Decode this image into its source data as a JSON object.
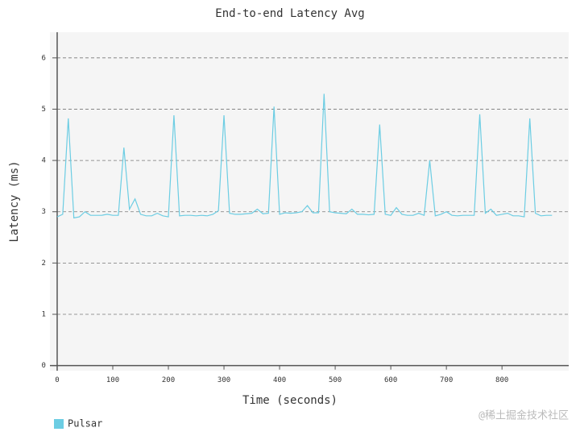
{
  "chart_data": {
    "type": "line",
    "title": "End-to-end Latency Avg",
    "x_label": "Time (seconds)",
    "y_label": "Latency (ms)",
    "x": [
      0,
      10,
      20,
      30,
      40,
      50,
      60,
      70,
      80,
      90,
      100,
      110,
      120,
      130,
      140,
      150,
      160,
      170,
      180,
      190,
      200,
      210,
      220,
      230,
      240,
      250,
      260,
      270,
      280,
      290,
      300,
      310,
      320,
      330,
      340,
      350,
      360,
      370,
      380,
      390,
      400,
      410,
      420,
      430,
      440,
      450,
      460,
      470,
      480,
      490,
      500,
      510,
      520,
      530,
      540,
      550,
      560,
      570,
      580,
      590,
      600,
      610,
      620,
      630,
      640,
      650,
      660,
      670,
      680,
      690,
      700,
      710,
      720,
      730,
      740,
      750,
      760,
      770,
      780,
      790,
      800,
      810,
      820,
      830,
      840,
      850,
      860,
      870,
      880,
      890
    ],
    "series": [
      {
        "name": "Pulsar",
        "color": "#6ccde3",
        "values": [
          2.9,
          2.95,
          4.82,
          2.88,
          2.9,
          3.0,
          2.93,
          2.93,
          2.93,
          2.95,
          2.93,
          2.93,
          4.25,
          3.05,
          3.25,
          2.95,
          2.92,
          2.92,
          2.97,
          2.92,
          2.9,
          4.88,
          2.92,
          2.93,
          2.93,
          2.92,
          2.93,
          2.92,
          2.95,
          3.02,
          4.88,
          2.97,
          2.95,
          2.95,
          2.96,
          2.97,
          3.05,
          2.96,
          2.97,
          5.05,
          2.95,
          2.98,
          2.97,
          2.98,
          3.0,
          3.12,
          2.98,
          2.98,
          5.3,
          3.0,
          2.98,
          2.97,
          2.96,
          3.05,
          2.95,
          2.95,
          2.94,
          2.95,
          4.7,
          2.95,
          2.93,
          3.08,
          2.95,
          2.93,
          2.93,
          2.97,
          2.93,
          4.0,
          2.92,
          2.95,
          3.0,
          2.93,
          2.92,
          2.93,
          2.93,
          2.93,
          4.9,
          2.97,
          3.05,
          2.93,
          2.95,
          2.97,
          2.92,
          2.92,
          2.9,
          4.82,
          2.97,
          2.92,
          2.93,
          2.93
        ]
      }
    ],
    "xlim": [
      -13,
      920
    ],
    "ylim": [
      -0.1,
      6.5
    ],
    "xticks": [
      0,
      100,
      200,
      300,
      400,
      500,
      600,
      700,
      800
    ],
    "yticks": [
      0,
      1,
      2,
      3,
      4,
      5,
      6
    ],
    "grid": true,
    "legend": "bottom-left",
    "watermark": "@稀土掘金技术社区"
  }
}
